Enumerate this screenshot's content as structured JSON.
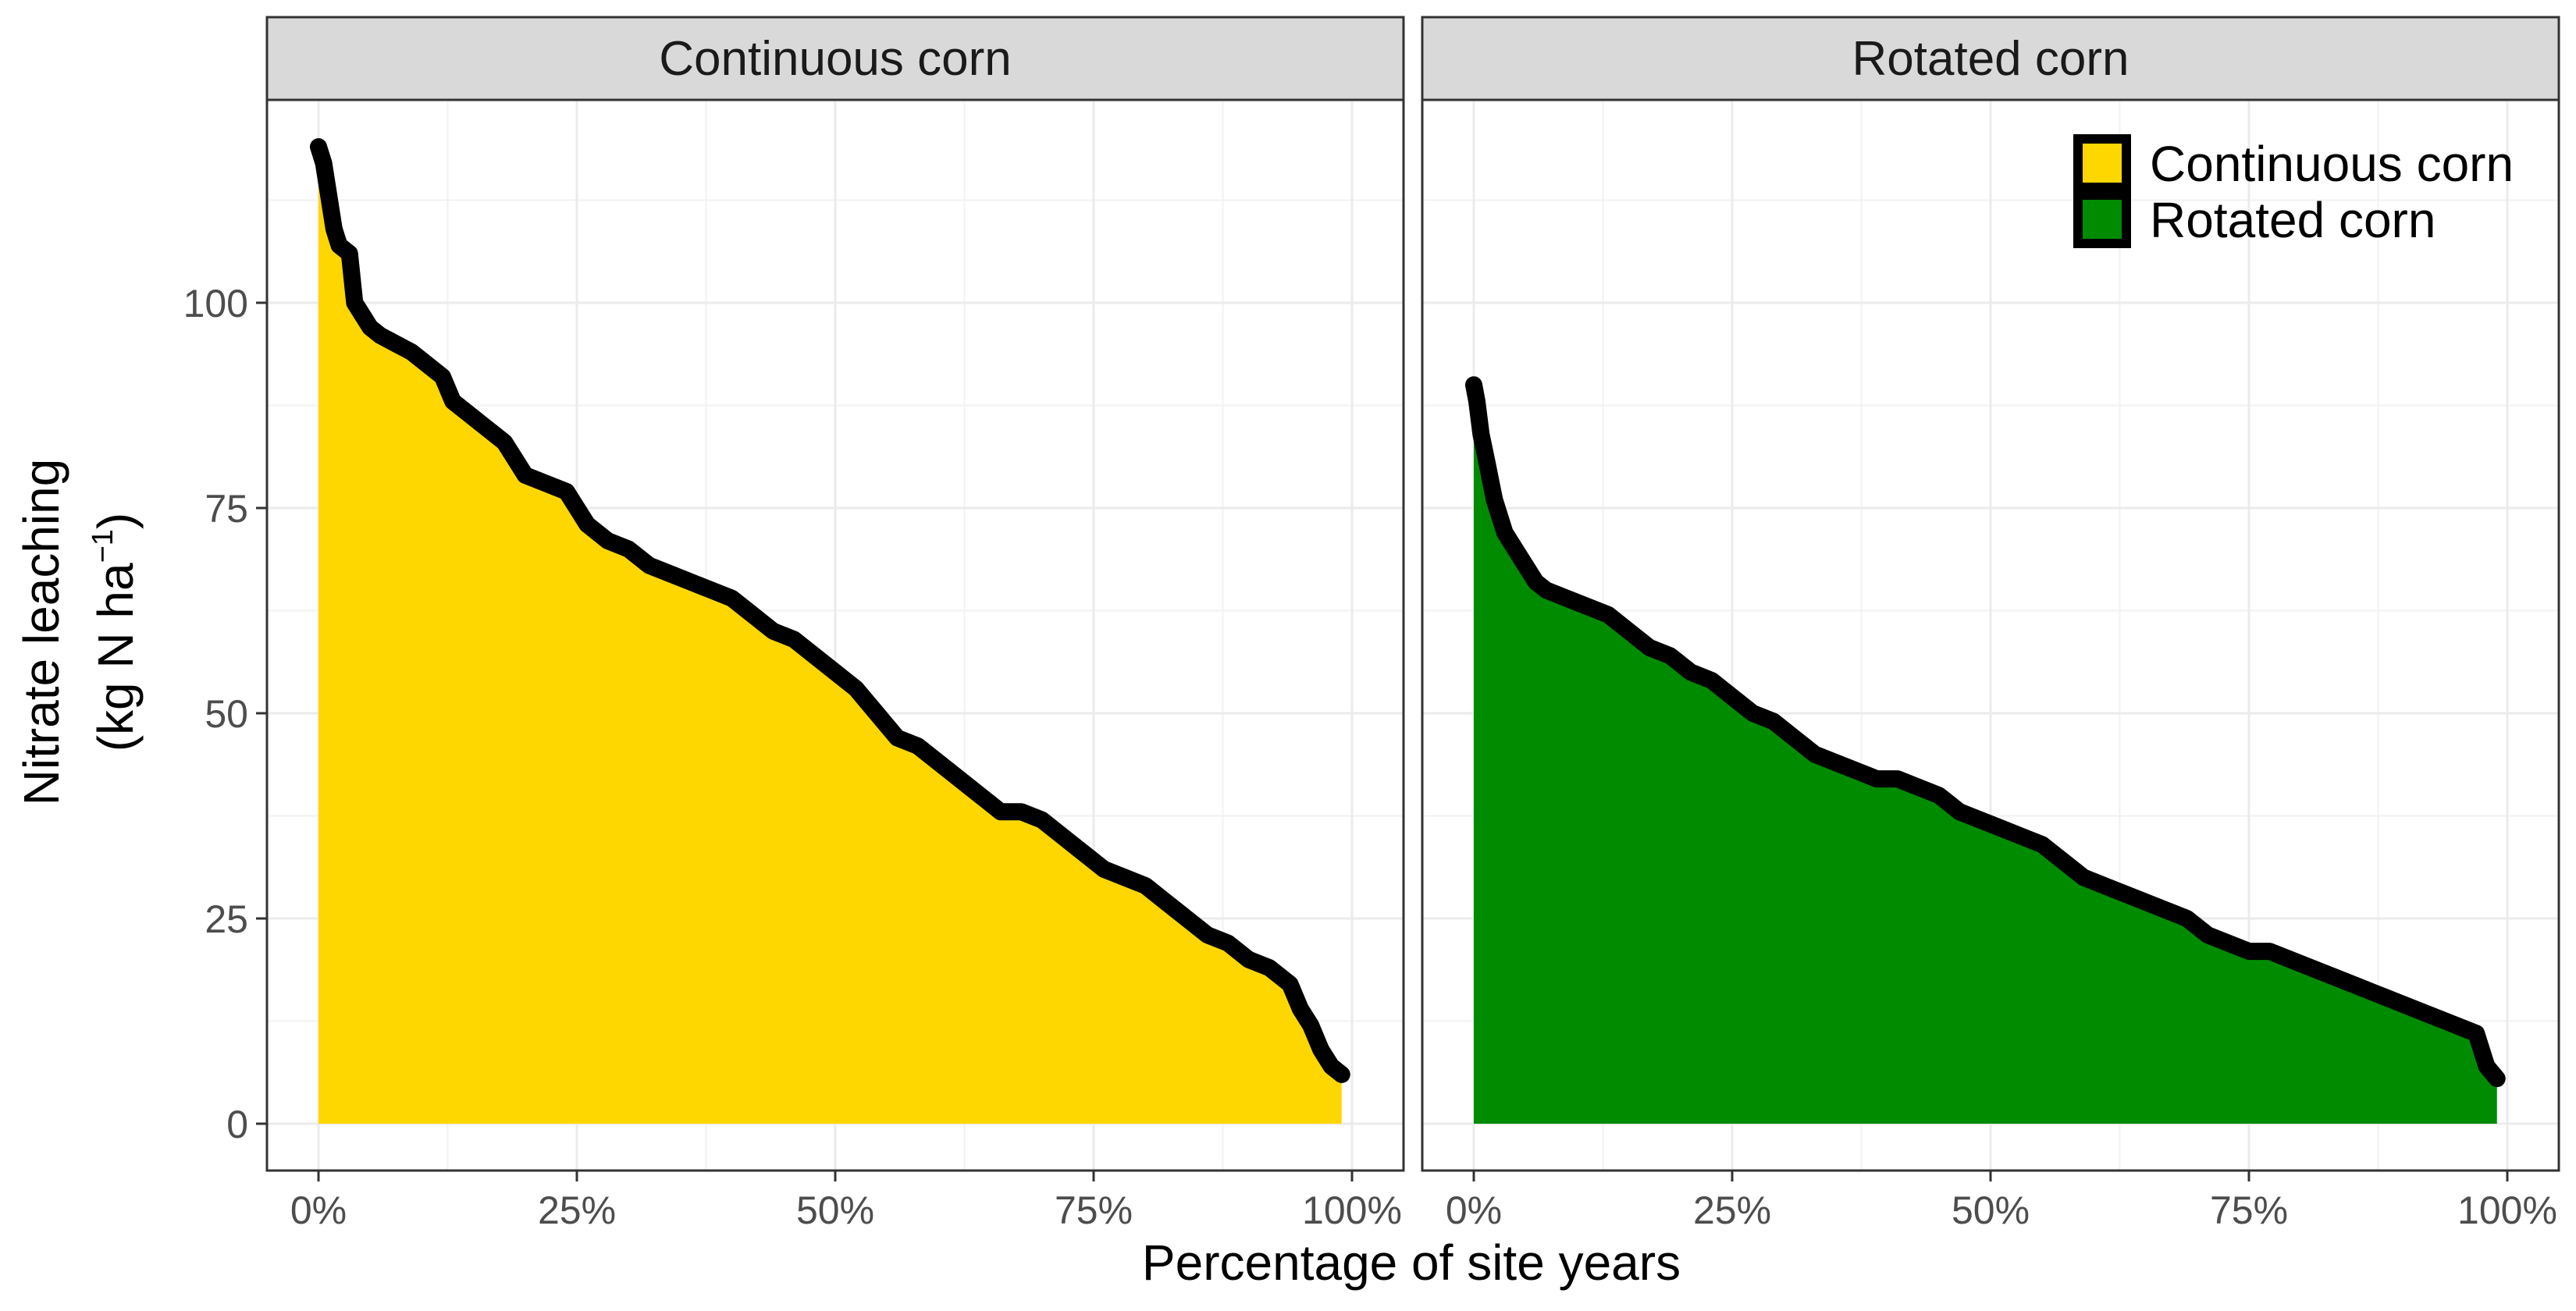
{
  "chart_data": {
    "type": "area",
    "ylabel_line1": "Nitrate leaching",
    "ylabel_line2_prefix": "(kg N  ha",
    "ylabel_line2_sup": "−1",
    "ylabel_line2_suffix": ")",
    "xlabel": "Percentage of site years",
    "xlim": [
      0,
      1
    ],
    "ylim": [
      0,
      120
    ],
    "x_ticks": [
      0,
      0.25,
      0.5,
      0.75,
      1.0
    ],
    "x_tick_labels": [
      "0%",
      "25%",
      "50%",
      "75%",
      "100%"
    ],
    "y_ticks": [
      0,
      25,
      50,
      75,
      100
    ],
    "y_tick_labels": [
      "0",
      "25",
      "50",
      "75",
      "100"
    ],
    "grid": true,
    "legend": {
      "position": "top-right",
      "entries": [
        {
          "label": "Continuous corn",
          "color": "#FFD700"
        },
        {
          "label": "Rotated corn",
          "color": "#008B00"
        }
      ]
    },
    "panels": [
      {
        "strip": "Continuous corn",
        "fill": "#FFD700",
        "line_color": "#000000",
        "x": [
          0.0,
          0.005,
          0.01,
          0.015,
          0.02,
          0.03,
          0.035,
          0.04,
          0.05,
          0.06,
          0.075,
          0.09,
          0.1,
          0.12,
          0.13,
          0.14,
          0.16,
          0.18,
          0.19,
          0.2,
          0.22,
          0.24,
          0.26,
          0.28,
          0.3,
          0.32,
          0.34,
          0.36,
          0.38,
          0.4,
          0.42,
          0.44,
          0.46,
          0.48,
          0.5,
          0.52,
          0.54,
          0.56,
          0.58,
          0.6,
          0.62,
          0.64,
          0.66,
          0.68,
          0.7,
          0.72,
          0.74,
          0.76,
          0.78,
          0.8,
          0.82,
          0.84,
          0.86,
          0.88,
          0.9,
          0.92,
          0.94,
          0.95,
          0.96,
          0.97,
          0.98,
          0.985,
          0.99
        ],
        "y": [
          119,
          117,
          113,
          109,
          107,
          106,
          100,
          99,
          97,
          96,
          95,
          94,
          93,
          91,
          88,
          87,
          85,
          83,
          81,
          79,
          78,
          77,
          73,
          71,
          70,
          68,
          67,
          66,
          65,
          64,
          62,
          60,
          59,
          57,
          55,
          53,
          50,
          47,
          46,
          44,
          42,
          40,
          38,
          38,
          37,
          35,
          33,
          31,
          30,
          29,
          27,
          25,
          23,
          22,
          20,
          19,
          17,
          14,
          12,
          9,
          7,
          6.5,
          6
        ]
      },
      {
        "strip": "Rotated corn",
        "fill": "#008B00",
        "line_color": "#000000",
        "x": [
          0.0,
          0.003,
          0.007,
          0.012,
          0.02,
          0.03,
          0.04,
          0.05,
          0.06,
          0.07,
          0.09,
          0.11,
          0.13,
          0.15,
          0.17,
          0.19,
          0.21,
          0.23,
          0.25,
          0.27,
          0.29,
          0.31,
          0.33,
          0.35,
          0.37,
          0.39,
          0.41,
          0.43,
          0.45,
          0.47,
          0.49,
          0.51,
          0.53,
          0.55,
          0.57,
          0.59,
          0.61,
          0.63,
          0.65,
          0.67,
          0.69,
          0.71,
          0.73,
          0.75,
          0.77,
          0.79,
          0.81,
          0.83,
          0.85,
          0.87,
          0.89,
          0.91,
          0.93,
          0.95,
          0.97,
          0.98,
          0.99
        ],
        "y": [
          90,
          88,
          84,
          81,
          76,
          72,
          70,
          68,
          66,
          65,
          64,
          63,
          62,
          60,
          58,
          57,
          55,
          54,
          52,
          50,
          49,
          47,
          45,
          44,
          43,
          42,
          42,
          41,
          40,
          38,
          37,
          36,
          35,
          34,
          32,
          30,
          29,
          28,
          27,
          26,
          25,
          23,
          22,
          21,
          21,
          20,
          19,
          18,
          17,
          16,
          15,
          14,
          13,
          12,
          11,
          7,
          5.5
        ]
      }
    ]
  }
}
